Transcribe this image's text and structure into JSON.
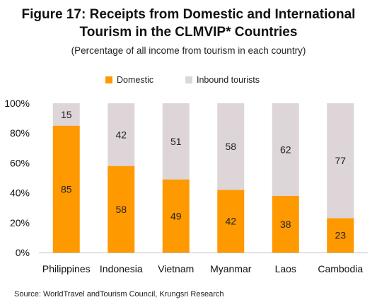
{
  "title_line1": "Figure 17: Receipts from Domestic and International",
  "title_line2": "Tourism in the CLMVIP* Countries",
  "subtitle": "(Percentage of all income from tourism in each country)",
  "source": "Source: WorldTravel andTourism Council, Krungsri Research",
  "colors": {
    "domestic": "#FF9900",
    "inbound": "#DDD5D8"
  },
  "chart_data": {
    "type": "bar",
    "stacked": true,
    "categories": [
      "Philippines",
      "Indonesia",
      "Vietnam",
      "Myanmar",
      "Laos",
      "Cambodia"
    ],
    "series": [
      {
        "name": "Domestic",
        "values": [
          85,
          58,
          49,
          42,
          38,
          23
        ]
      },
      {
        "name": "Inbound tourists",
        "values": [
          15,
          42,
          51,
          58,
          62,
          77
        ]
      }
    ],
    "yticks": [
      "0%",
      "20%",
      "40%",
      "60%",
      "80%",
      "100%"
    ],
    "ylim": [
      0,
      100
    ],
    "grid": false,
    "legend_position": "top"
  }
}
